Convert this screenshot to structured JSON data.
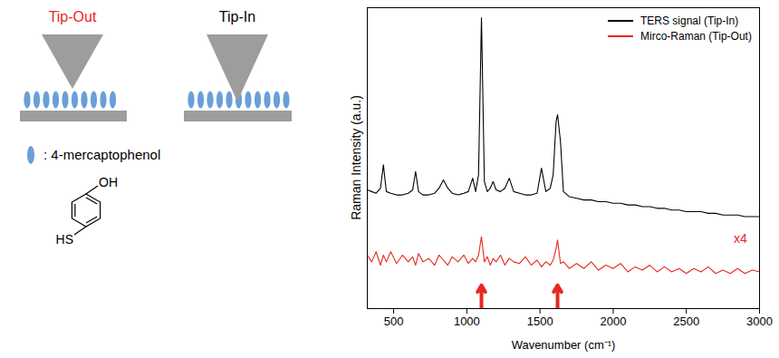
{
  "diagram": {
    "panels": [
      {
        "label": "Tip-Out",
        "color": "#e8281e"
      },
      {
        "label": "Tip-In",
        "color": "#000000"
      }
    ],
    "legend_label": ": 4-mercaptophenol",
    "molecule": {
      "top_group": "OH",
      "bottom_group": "HS"
    }
  },
  "chart_data": {
    "type": "line",
    "x_label": "Wavenumber (cm⁻¹)",
    "y_label": "Raman Intensity (a.u.)",
    "x": [
      320,
      350,
      380,
      410,
      430,
      450,
      480,
      520,
      560,
      600,
      630,
      650,
      670,
      700,
      740,
      780,
      810,
      840,
      870,
      900,
      940,
      980,
      1010,
      1040,
      1060,
      1080,
      1100,
      1120,
      1140,
      1160,
      1180,
      1200,
      1230,
      1260,
      1290,
      1320,
      1360,
      1400,
      1440,
      1480,
      1510,
      1540,
      1570,
      1590,
      1610,
      1620,
      1640,
      1660,
      1700,
      1750,
      1800,
      1850,
      1900,
      1950,
      2000,
      2050,
      2100,
      2150,
      2200,
      2250,
      2300,
      2350,
      2400,
      2450,
      2500,
      2550,
      2600,
      2650,
      2700,
      2750,
      2800,
      2850,
      2900,
      2950,
      3000
    ],
    "series": [
      {
        "name": "TERS signal (Tip-In)",
        "color": "#000000",
        "values": [
          45.5,
          45,
          44.5,
          46,
          53,
          45,
          44.5,
          44,
          44,
          44.5,
          45.5,
          51,
          45,
          44,
          44,
          44.5,
          46,
          48.5,
          46,
          44.5,
          44,
          44.5,
          45,
          49,
          45,
          50,
          97,
          48,
          45,
          46,
          48,
          45.5,
          45,
          46,
          49,
          45,
          44.5,
          44,
          44,
          44.5,
          52,
          45,
          46,
          50,
          66,
          68,
          60,
          45,
          43.5,
          43,
          42.5,
          42.5,
          42,
          42,
          41.5,
          41.5,
          41,
          41,
          40.5,
          40.5,
          40,
          40,
          39.5,
          39.5,
          39,
          39,
          39,
          38.5,
          38.5,
          38,
          38,
          38,
          37.5,
          37.5,
          37.5
        ]
      },
      {
        "name": "Mirco-Raman (Tip-Out)",
        "color": "#e8281e",
        "values": [
          26,
          24,
          27,
          23,
          26,
          24,
          27,
          23.5,
          26,
          24,
          25.5,
          23,
          26.5,
          24,
          25,
          23,
          26,
          24.5,
          23,
          25.5,
          24,
          26,
          23.5,
          25,
          24,
          26,
          31.5,
          24,
          25.5,
          23,
          25,
          24,
          26,
          23,
          25,
          24,
          23.5,
          25.5,
          23,
          24.5,
          22.5,
          24,
          23,
          24.5,
          28,
          30.5,
          23.5,
          24,
          22,
          23.5,
          22,
          24,
          21.5,
          23,
          22,
          23.5,
          21,
          22.5,
          21.5,
          23,
          21,
          22.5,
          21,
          22,
          20.5,
          22,
          21,
          22.5,
          20.5,
          21.5,
          20.5,
          22,
          20.5,
          21.5,
          21
        ]
      }
    ],
    "xlim": [
      320,
      3000
    ],
    "xticks": [
      500,
      1000,
      1500,
      2000,
      2500,
      3000
    ],
    "ylim": [
      10,
      100
    ],
    "tick_labels": "x",
    "legend": "top-right",
    "annotations": [
      {
        "text": "x4",
        "x": 2870,
        "y": 31,
        "color": "#e8281e"
      }
    ],
    "arrows": {
      "x": [
        1100,
        1620
      ],
      "y": [
        10,
        17
      ],
      "color": "#e8281e"
    }
  }
}
